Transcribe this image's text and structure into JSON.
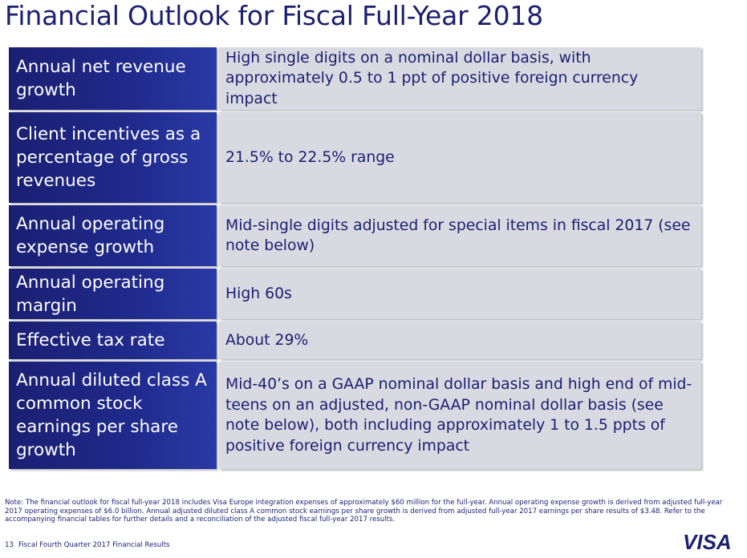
{
  "title": "Financial Outlook for Fiscal Full-Year 2018",
  "rows": [
    {
      "label": "Annual net revenue growth",
      "value": "High single digits on a nominal dollar basis, with approximately 0.5 to 1 ppt of positive foreign currency impact"
    },
    {
      "label": "Client incentives as a percentage of gross revenues",
      "value": "21.5% to 22.5% range"
    },
    {
      "label": "Annual operating expense growth",
      "value": "Mid-single digits adjusted for special items in fiscal 2017 (see note below)"
    },
    {
      "label": "Annual operating margin",
      "value": "High 60s"
    },
    {
      "label": "Effective tax rate",
      "value": "About 29%"
    },
    {
      "label": "Annual diluted class A common stock earnings per share growth",
      "value": "Mid-40’s on a GAAP nominal dollar basis and high end of mid-teens on an adjusted, non-GAAP nominal dollar basis (see note below), both including approximately 1 to 1.5 ppts of positive foreign currency impact"
    }
  ],
  "note": "Note: The financial outlook for fiscal full-year 2018 includes Visa Europe integration expenses of approximately $60 million for the full-year. Annual operating expense growth is derived from adjusted full-year 2017 operating expenses of $6.0 billion. Annual adjusted diluted class A common stock earnings per share growth is derived from adjusted full-year 2017 earnings per share results of $3.48. Refer to the accompanying financial tables for further details and a reconciliation of the adjusted fiscal full-year 2017 results.",
  "footer": {
    "page_number": "13",
    "text": "Fiscal Fourth Quarter 2017 Financial Results"
  },
  "logo_text": "VISA",
  "colors": {
    "brand_navy": "#1a1f71",
    "cell_gray": "#d9d9e1"
  }
}
